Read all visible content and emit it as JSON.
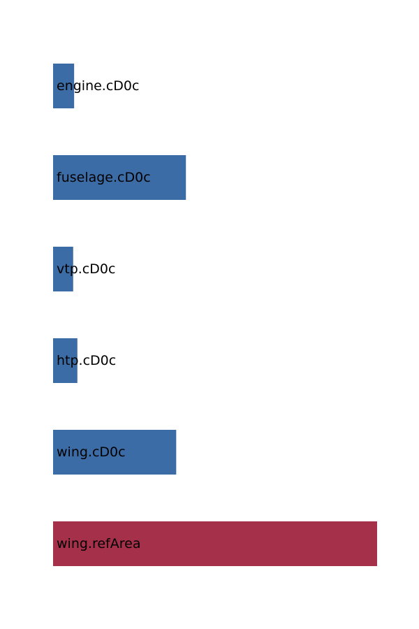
{
  "chart_data": {
    "type": "bar",
    "orientation": "horizontal",
    "categories": [
      "engine.cD0c",
      "fuselage.cD0c",
      "vtp.cD0c",
      "htp.cD0c",
      "wing.cD0c",
      "wing.refArea"
    ],
    "values": [
      0.065,
      0.41,
      0.062,
      0.075,
      0.38,
      1.0
    ],
    "xlim": [
      0,
      1.0
    ],
    "axes_visible": false,
    "grid": false,
    "colors": {
      "engine.cD0c": "#3c6ca6",
      "fuselage.cD0c": "#3c6ca6",
      "vtp.cD0c": "#3c6ca6",
      "htp.cD0c": "#3c6ca6",
      "wing.cD0c": "#3c6ca6",
      "wing.refArea": "#a4304a"
    }
  }
}
